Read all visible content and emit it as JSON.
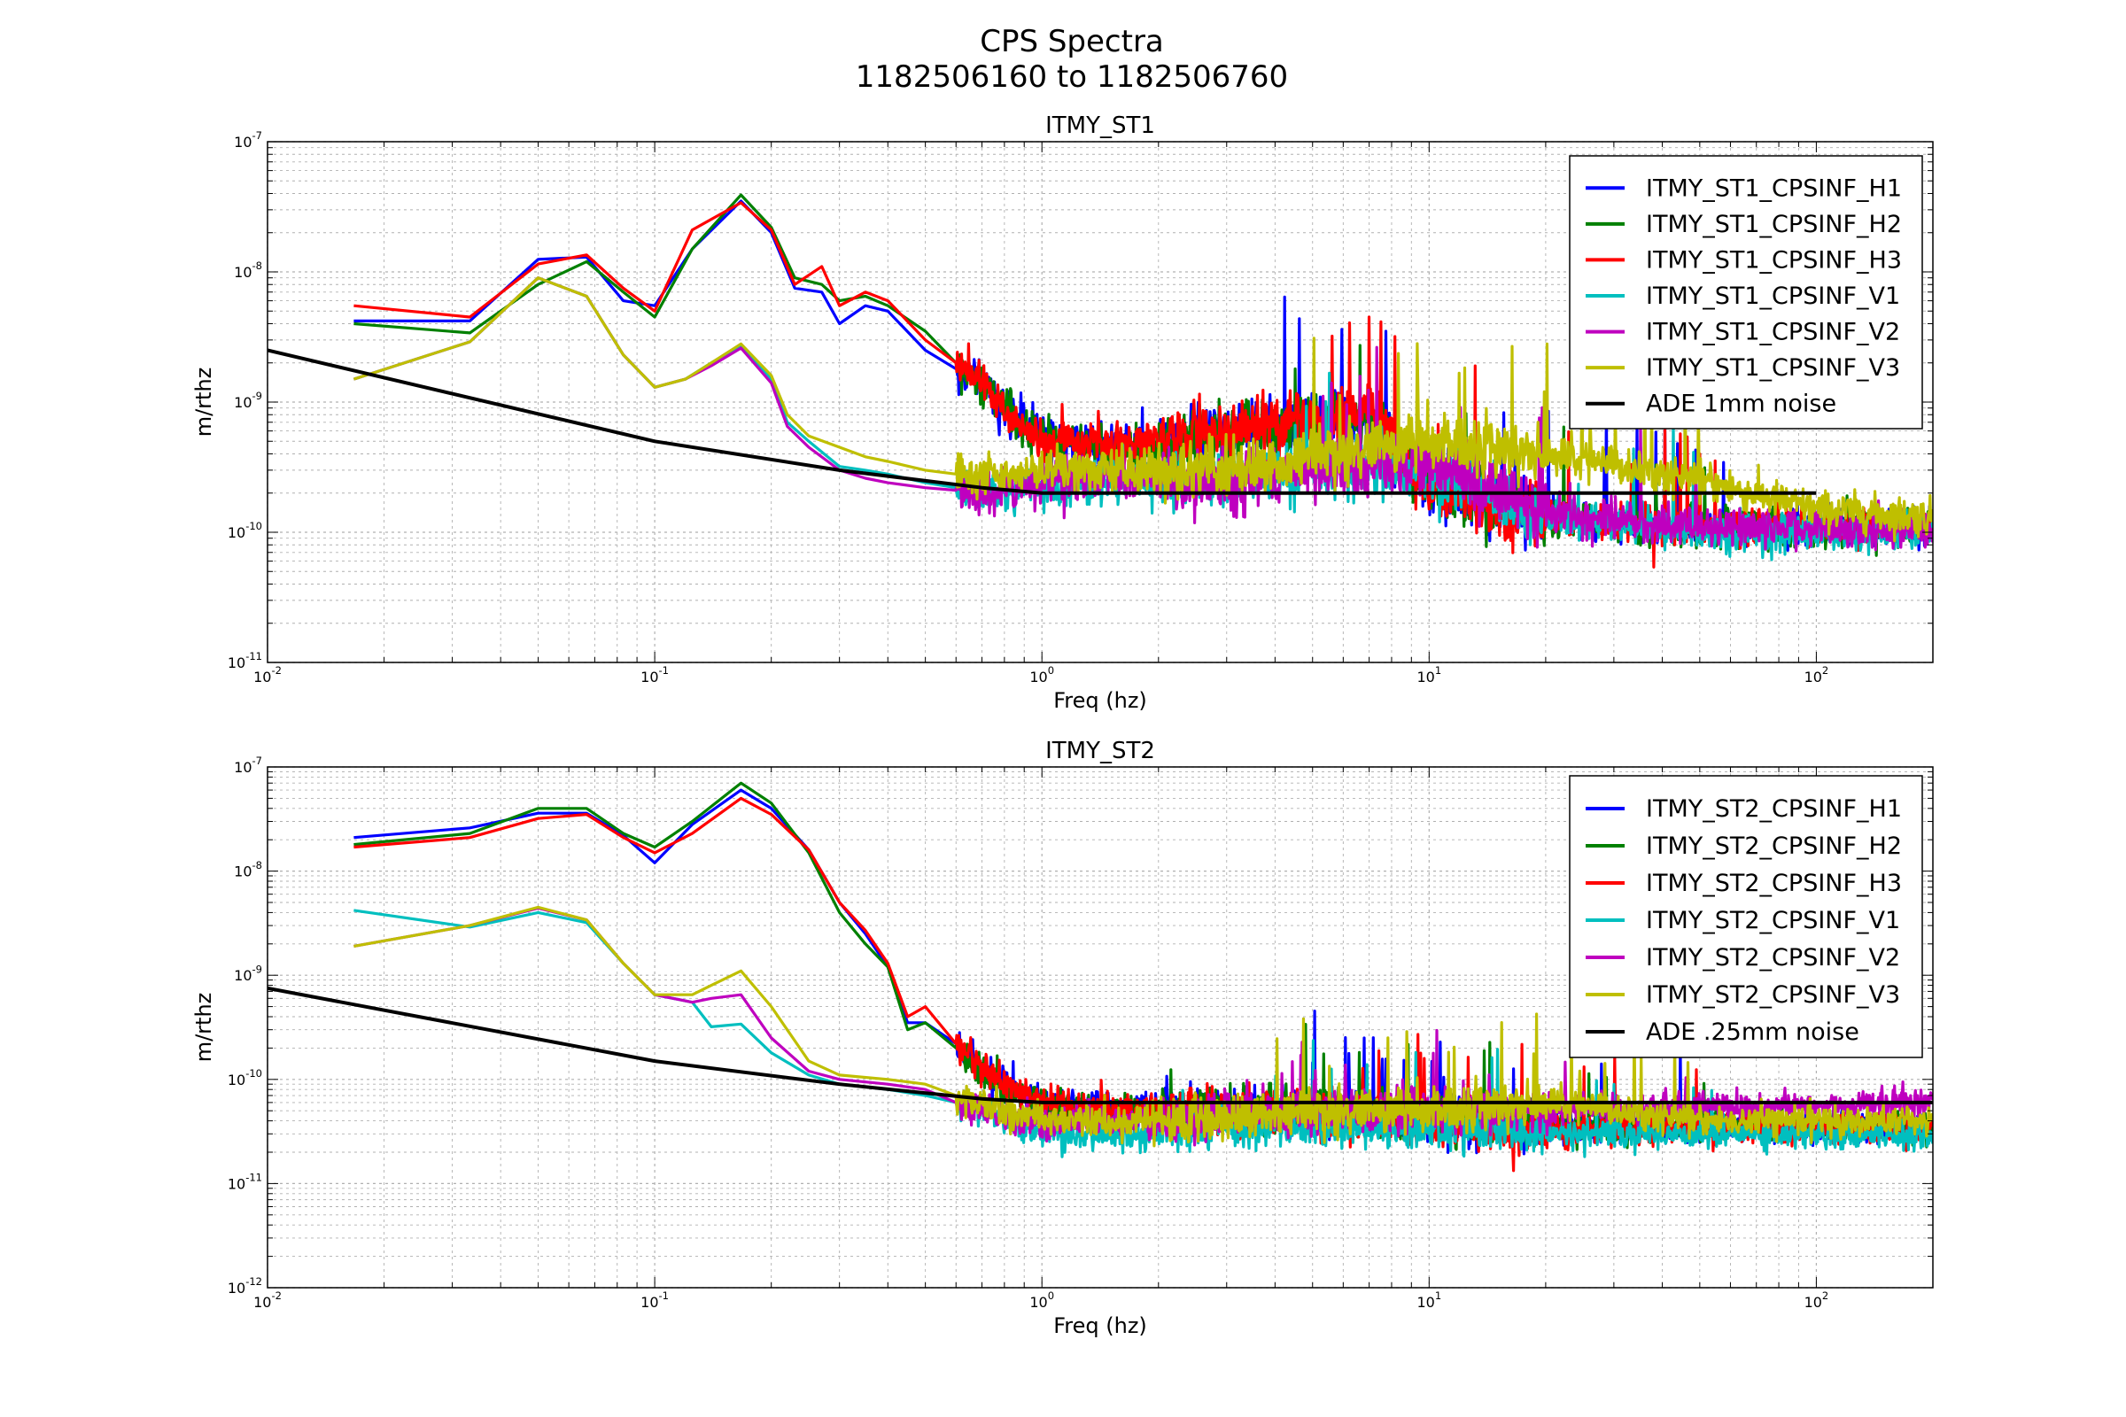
{
  "figure": {
    "title_line1": "CPS Spectra",
    "title_line2": "1182506160 to 1182506760"
  },
  "colors": {
    "H1": "#0000ff",
    "H2": "#008000",
    "H3": "#ff0000",
    "V1": "#00bfbf",
    "V2": "#bf00bf",
    "V3": "#bfbf00",
    "noise": "#000000"
  },
  "chart_data": [
    {
      "type": "line",
      "title": "ITMY_ST1",
      "xlabel": "Freq (hz)",
      "ylabel": "m/rthz",
      "xscale": "log",
      "yscale": "log",
      "xlim": [
        0.01,
        200
      ],
      "ylim": [
        1e-11,
        1e-07
      ],
      "x_tick_labels": [
        "10^-2",
        "10^-1",
        "10^0",
        "10^1",
        "10^2"
      ],
      "y_tick_labels": [
        "10^-11",
        "10^-10",
        "10^-9",
        "10^-8",
        "10^-7"
      ],
      "grid": true,
      "legend": "top-right",
      "series": [
        {
          "name": "ITMY_ST1_CPSINF_H1",
          "color_key": "H1",
          "style": "noisy",
          "x": [
            0.0167,
            0.0333,
            0.05,
            0.0667,
            0.083,
            0.1,
            0.125,
            0.167,
            0.2,
            0.23,
            0.27,
            0.3,
            0.35,
            0.4,
            0.5,
            0.6,
            0.7,
            0.8,
            1.0,
            1.2,
            1.5,
            2,
            3,
            5,
            7,
            10,
            15,
            20,
            30,
            50,
            100,
            200
          ],
          "y": [
            4.2e-09,
            4.2e-09,
            1.25e-08,
            1.3e-08,
            6e-09,
            5.5e-09,
            1.5e-08,
            3.5e-08,
            2e-08,
            7.5e-09,
            7e-09,
            4e-09,
            5.5e-09,
            5e-09,
            2.5e-09,
            1.8e-09,
            1.5e-09,
            8e-10,
            6e-10,
            5e-10,
            5e-10,
            5e-10,
            6e-10,
            7e-10,
            8e-10,
            2.5e-10,
            1.6e-10,
            1.4e-10,
            1.2e-10,
            1.1e-10,
            1.1e-10,
            1.1e-10
          ]
        },
        {
          "name": "ITMY_ST1_CPSINF_H2",
          "color_key": "H2",
          "style": "noisy",
          "x": [
            0.0167,
            0.0333,
            0.05,
            0.0667,
            0.083,
            0.1,
            0.125,
            0.167,
            0.2,
            0.23,
            0.27,
            0.3,
            0.35,
            0.4,
            0.5,
            0.6,
            0.7,
            0.8,
            1.0,
            1.2,
            1.5,
            2,
            3,
            5,
            7,
            10,
            15,
            20,
            30,
            50,
            100,
            200
          ],
          "y": [
            4e-09,
            3.4e-09,
            8e-09,
            1.2e-08,
            7e-09,
            4.5e-09,
            1.5e-08,
            3.9e-08,
            2.2e-08,
            9e-09,
            8e-09,
            6e-09,
            6.5e-09,
            5.5e-09,
            3.5e-09,
            2e-09,
            1.4e-09,
            9e-10,
            5e-10,
            5e-10,
            4.5e-10,
            4.5e-10,
            6e-10,
            7e-10,
            7e-10,
            2.5e-10,
            1.6e-10,
            1.3e-10,
            1.2e-10,
            1.1e-10,
            1.1e-10,
            1.1e-10
          ]
        },
        {
          "name": "ITMY_ST1_CPSINF_H3",
          "color_key": "H3",
          "style": "noisy",
          "x": [
            0.0167,
            0.0333,
            0.05,
            0.0667,
            0.083,
            0.1,
            0.125,
            0.167,
            0.2,
            0.23,
            0.27,
            0.3,
            0.35,
            0.4,
            0.5,
            0.6,
            0.7,
            0.8,
            1.0,
            1.2,
            1.5,
            2,
            3,
            5,
            7,
            10,
            15,
            20,
            30,
            50,
            100,
            200
          ],
          "y": [
            5.5e-09,
            4.5e-09,
            1.15e-08,
            1.35e-08,
            7.5e-09,
            5e-09,
            2.1e-08,
            3.4e-08,
            2.1e-08,
            8e-09,
            1.1e-08,
            5.5e-09,
            7e-09,
            6e-09,
            3e-09,
            2e-09,
            1.4e-09,
            8e-10,
            5e-10,
            5e-10,
            5e-10,
            5e-10,
            6e-10,
            8e-10,
            9e-10,
            2.2e-10,
            1.5e-10,
            1.3e-10,
            1.2e-10,
            1.1e-10,
            1.1e-10,
            1.1e-10
          ]
        },
        {
          "name": "ITMY_ST1_CPSINF_V1",
          "color_key": "V1",
          "style": "noisy",
          "x": [
            0.0167,
            0.0333,
            0.05,
            0.0667,
            0.083,
            0.1,
            0.12,
            0.14,
            0.167,
            0.2,
            0.22,
            0.25,
            0.3,
            0.35,
            0.4,
            0.5,
            0.6,
            0.8,
            1.0,
            1.5,
            2,
            3,
            5,
            10,
            20,
            50,
            100,
            200
          ],
          "y": [
            1.5e-09,
            2.9e-09,
            9e-09,
            6.5e-09,
            2.3e-09,
            1.3e-09,
            1.5e-09,
            2e-09,
            2.7e-09,
            1.5e-09,
            7e-10,
            5e-10,
            3.2e-10,
            3e-10,
            2.8e-10,
            2.4e-10,
            2.2e-10,
            2e-10,
            2.3e-10,
            2.5e-10,
            2.5e-10,
            2.5e-10,
            2.8e-10,
            3e-10,
            1.3e-10,
            1e-10,
            1e-10,
            1e-10
          ]
        },
        {
          "name": "ITMY_ST1_CPSINF_V2",
          "color_key": "V2",
          "style": "noisy",
          "x": [
            0.0167,
            0.0333,
            0.05,
            0.0667,
            0.083,
            0.1,
            0.12,
            0.14,
            0.167,
            0.2,
            0.22,
            0.25,
            0.3,
            0.35,
            0.4,
            0.5,
            0.6,
            0.8,
            1.0,
            1.5,
            2,
            3,
            5,
            10,
            20,
            50,
            100,
            200
          ],
          "y": [
            1.5e-09,
            2.9e-09,
            9e-09,
            6.5e-09,
            2.3e-09,
            1.3e-09,
            1.5e-09,
            1.9e-09,
            2.6e-09,
            1.4e-09,
            6.5e-10,
            4.5e-10,
            3e-10,
            2.6e-10,
            2.4e-10,
            2.2e-10,
            2.1e-10,
            2e-10,
            2.4e-10,
            2.6e-10,
            2.5e-10,
            2.5e-10,
            3e-10,
            3.5e-10,
            1.4e-10,
            1.1e-10,
            1.1e-10,
            1e-10
          ]
        },
        {
          "name": "ITMY_ST1_CPSINF_V3",
          "color_key": "V3",
          "style": "noisy",
          "x": [
            0.0167,
            0.0333,
            0.05,
            0.0667,
            0.083,
            0.1,
            0.12,
            0.14,
            0.167,
            0.2,
            0.22,
            0.25,
            0.3,
            0.35,
            0.4,
            0.5,
            0.6,
            0.8,
            1.0,
            1.5,
            2,
            3,
            5,
            10,
            20,
            50,
            100,
            200
          ],
          "y": [
            1.5e-09,
            2.9e-09,
            9e-09,
            6.5e-09,
            2.3e-09,
            1.3e-09,
            1.5e-09,
            2e-09,
            2.8e-09,
            1.6e-09,
            8e-10,
            5.5e-10,
            4.5e-10,
            3.8e-10,
            3.5e-10,
            3e-10,
            2.8e-10,
            2.8e-10,
            3e-10,
            3e-10,
            3e-10,
            3e-10,
            4e-10,
            5e-10,
            4e-10,
            2.5e-10,
            1.5e-10,
            1.3e-10
          ]
        },
        {
          "name": "ADE 1mm noise",
          "color_key": "noise",
          "style": "smooth",
          "x": [
            0.01,
            0.1,
            0.3,
            0.7,
            1,
            10,
            100
          ],
          "y": [
            2.5e-09,
            5e-10,
            3e-10,
            2.2e-10,
            2e-10,
            2e-10,
            2e-10
          ]
        }
      ]
    },
    {
      "type": "line",
      "title": "ITMY_ST2",
      "xlabel": "Freq (hz)",
      "ylabel": "m/rthz",
      "xscale": "log",
      "yscale": "log",
      "xlim": [
        0.01,
        200
      ],
      "ylim": [
        1e-12,
        1e-07
      ],
      "x_tick_labels": [
        "10^-2",
        "10^-1",
        "10^0",
        "10^1",
        "10^2"
      ],
      "y_tick_labels": [
        "10^-12",
        "10^-11",
        "10^-10",
        "10^-9",
        "10^-8",
        "10^-7"
      ],
      "grid": true,
      "legend": "top-right",
      "series": [
        {
          "name": "ITMY_ST2_CPSINF_H1",
          "color_key": "H1",
          "style": "noisy",
          "x": [
            0.0167,
            0.0333,
            0.05,
            0.0667,
            0.083,
            0.1,
            0.125,
            0.167,
            0.2,
            0.25,
            0.3,
            0.35,
            0.4,
            0.45,
            0.5,
            0.6,
            0.7,
            0.8,
            1.0,
            1.5,
            2,
            3,
            5,
            10,
            20,
            50,
            100,
            200
          ],
          "y": [
            2.1e-08,
            2.6e-08,
            3.6e-08,
            3.6e-08,
            2.2e-08,
            1.2e-08,
            2.8e-08,
            6e-08,
            4e-08,
            1.6e-08,
            5e-09,
            2.5e-09,
            1.2e-09,
            3.5e-10,
            3.5e-10,
            2.2e-10,
            1.3e-10,
            9e-11,
            6e-11,
            5e-11,
            5e-11,
            5e-11,
            5e-11,
            4e-11,
            3.5e-11,
            3.5e-11,
            3.5e-11,
            3.5e-11
          ]
        },
        {
          "name": "ITMY_ST2_CPSINF_H2",
          "color_key": "H2",
          "style": "noisy",
          "x": [
            0.0167,
            0.0333,
            0.05,
            0.0667,
            0.083,
            0.1,
            0.125,
            0.167,
            0.2,
            0.25,
            0.3,
            0.35,
            0.4,
            0.45,
            0.5,
            0.6,
            0.7,
            0.8,
            1.0,
            1.5,
            2,
            3,
            5,
            10,
            20,
            50,
            100,
            200
          ],
          "y": [
            1.8e-08,
            2.3e-08,
            4e-08,
            4e-08,
            2.3e-08,
            1.7e-08,
            3e-08,
            7e-08,
            4.5e-08,
            1.5e-08,
            4e-09,
            2e-09,
            1.2e-09,
            3e-10,
            3.5e-10,
            2e-10,
            1.2e-10,
            8e-11,
            6e-11,
            5e-11,
            5e-11,
            5e-11,
            5e-11,
            4e-11,
            3.5e-11,
            3.5e-11,
            3.5e-11,
            3.5e-11
          ]
        },
        {
          "name": "ITMY_ST2_CPSINF_H3",
          "color_key": "H3",
          "style": "noisy",
          "x": [
            0.0167,
            0.0333,
            0.05,
            0.0667,
            0.083,
            0.1,
            0.125,
            0.167,
            0.2,
            0.25,
            0.3,
            0.35,
            0.4,
            0.45,
            0.5,
            0.6,
            0.7,
            0.8,
            1.0,
            1.5,
            2,
            3,
            5,
            10,
            20,
            50,
            100,
            200
          ],
          "y": [
            1.7e-08,
            2.1e-08,
            3.2e-08,
            3.5e-08,
            2.1e-08,
            1.5e-08,
            2.3e-08,
            5e-08,
            3.5e-08,
            1.6e-08,
            5e-09,
            2.7e-09,
            1.3e-09,
            4e-10,
            5e-10,
            2.2e-10,
            1.4e-10,
            9e-11,
            6e-11,
            5e-11,
            5e-11,
            5e-11,
            5e-11,
            4e-11,
            3.2e-11,
            3.5e-11,
            3.5e-11,
            3.5e-11
          ]
        },
        {
          "name": "ITMY_ST2_CPSINF_V1",
          "color_key": "V1",
          "style": "noisy",
          "x": [
            0.0167,
            0.0333,
            0.05,
            0.0667,
            0.083,
            0.1,
            0.125,
            0.14,
            0.167,
            0.2,
            0.25,
            0.3,
            0.4,
            0.5,
            0.6,
            0.8,
            1.0,
            1.5,
            2,
            3,
            5,
            10,
            20,
            50,
            100,
            200
          ],
          "y": [
            4.2e-09,
            2.9e-09,
            4e-09,
            3.2e-09,
            1.3e-09,
            6.5e-10,
            5.5e-10,
            3.2e-10,
            3.4e-10,
            1.8e-10,
            1.1e-10,
            9e-11,
            8e-11,
            7e-11,
            6e-11,
            4e-11,
            3e-11,
            3e-11,
            3e-11,
            3.5e-11,
            3.5e-11,
            3.5e-11,
            3e-11,
            3e-11,
            3e-11,
            3e-11
          ]
        },
        {
          "name": "ITMY_ST2_CPSINF_V2",
          "color_key": "V2",
          "style": "noisy",
          "x": [
            0.0167,
            0.0333,
            0.05,
            0.0667,
            0.083,
            0.1,
            0.125,
            0.14,
            0.167,
            0.2,
            0.25,
            0.3,
            0.4,
            0.5,
            0.6,
            0.8,
            1.0,
            1.5,
            2,
            3,
            5,
            10,
            20,
            50,
            100,
            200
          ],
          "y": [
            1.9e-09,
            3e-09,
            4.4e-09,
            3.4e-09,
            1.3e-09,
            6.5e-10,
            5.5e-10,
            6e-10,
            6.5e-10,
            2.5e-10,
            1.2e-10,
            1e-10,
            9e-11,
            8e-11,
            6e-11,
            4.5e-11,
            4e-11,
            4e-11,
            4e-11,
            4.5e-11,
            5e-11,
            5e-11,
            5e-11,
            5.5e-11,
            5.5e-11,
            6e-11
          ]
        },
        {
          "name": "ITMY_ST2_CPSINF_V3",
          "color_key": "V3",
          "style": "noisy",
          "x": [
            0.0167,
            0.0333,
            0.05,
            0.0667,
            0.083,
            0.1,
            0.125,
            0.14,
            0.167,
            0.2,
            0.25,
            0.3,
            0.4,
            0.5,
            0.6,
            0.8,
            1.0,
            1.5,
            2,
            3,
            5,
            10,
            20,
            50,
            100,
            200
          ],
          "y": [
            1.9e-09,
            3e-09,
            4.5e-09,
            3.4e-09,
            1.3e-09,
            6.5e-10,
            6.5e-10,
            8e-10,
            1.1e-09,
            5e-10,
            1.5e-10,
            1.1e-10,
            1e-10,
            9e-11,
            7e-11,
            5e-11,
            4e-11,
            4e-11,
            4e-11,
            4.5e-11,
            5e-11,
            5e-11,
            6e-11,
            4e-11,
            4e-11,
            4e-11
          ]
        },
        {
          "name": "ADE .25mm noise",
          "color_key": "noise",
          "style": "smooth",
          "x": [
            0.01,
            0.1,
            0.3,
            0.7,
            1,
            10,
            200
          ],
          "y": [
            7.5e-10,
            1.5e-10,
            9e-11,
            6.5e-11,
            6e-11,
            6e-11,
            6e-11
          ]
        }
      ]
    }
  ]
}
